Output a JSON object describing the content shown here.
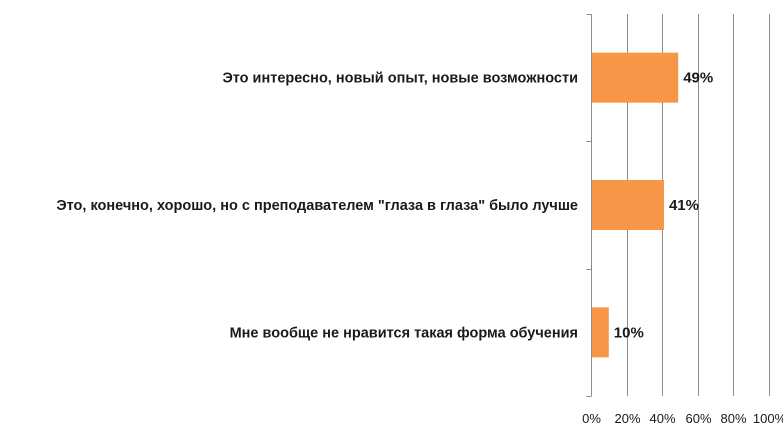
{
  "chart_data": {
    "type": "bar",
    "orientation": "horizontal",
    "categories": [
      "Это интересно, новый опыт, новые возможности",
      "Это, конечно, хорошо, но с преподавателем \"глаза в глаза\" было лучше",
      "Мне вообще не нравится такая форма обучения"
    ],
    "values": [
      49,
      41,
      10
    ],
    "data_labels": [
      "49%",
      "41%",
      "10%"
    ],
    "xlim": [
      0,
      100
    ],
    "xticks": [
      "0%",
      "20%",
      "40%",
      "60%",
      "80%",
      "100%"
    ],
    "title": "",
    "xlabel": "",
    "ylabel": "",
    "grid": true,
    "legend": "none",
    "bar_color": "#f79646",
    "grid_color": "#8c8c8c"
  }
}
